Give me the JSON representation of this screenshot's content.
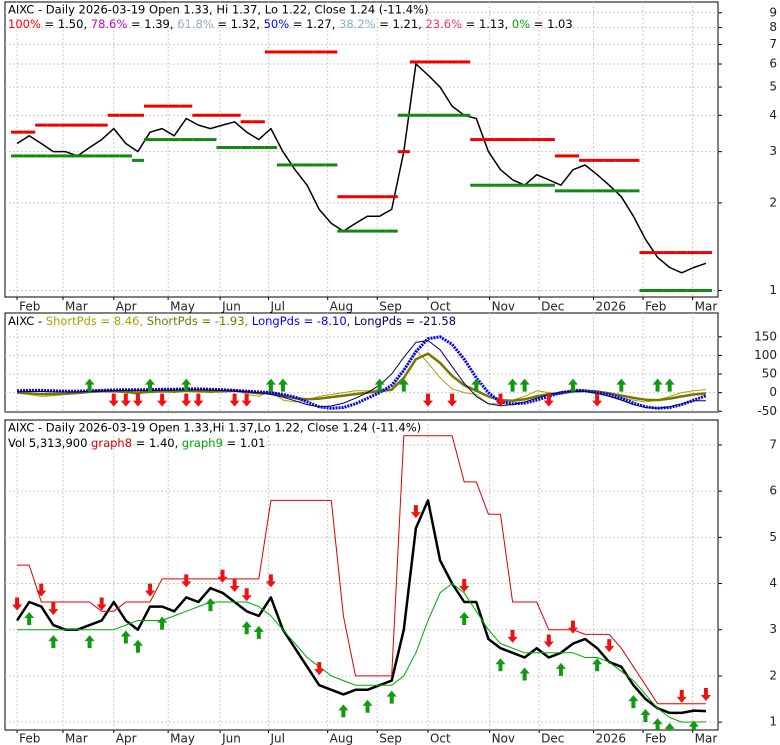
{
  "chart_data": [
    {
      "type": "line",
      "log_scale": true,
      "grid": true,
      "title": "AIXC - Daily 2026-03-19 Open 1.33, Hi 1.37, Lo 1.22, Close 1.24 (-11.4%)",
      "fib": [
        {
          "label": "100%",
          "text": " = 1.50, ",
          "color": "#ff0000"
        },
        {
          "label": "78.6%",
          "text": " = 1.39, ",
          "color": "#cc00cc"
        },
        {
          "label": "61.8%",
          "text": " = 1.32, ",
          "color": "#99aacc"
        },
        {
          "label": "50%",
          "text": " = 1.27, ",
          "color": "#0000ff"
        },
        {
          "label": "38.2%",
          "text": " = 1.21, ",
          "color": "#88aacc"
        },
        {
          "label": "23.6%",
          "text": " = 1.13, ",
          "color": "#ff3366"
        },
        {
          "label": "0%",
          "text": " = 1.03",
          "color": "#00aa00"
        }
      ],
      "x": [
        0,
        1,
        2,
        3,
        4,
        5,
        6,
        7,
        8,
        9,
        10,
        11,
        12,
        13,
        14,
        15,
        16,
        17,
        18,
        19,
        20,
        21,
        22,
        23,
        24,
        25,
        26,
        27,
        28,
        29,
        30,
        31,
        32,
        33,
        34,
        35,
        36,
        37,
        38,
        39,
        40,
        41,
        42,
        43,
        44,
        45,
        46,
        47,
        48,
        49,
        50,
        51,
        52,
        53,
        54,
        55,
        56,
        57
      ],
      "xlim": [
        -1,
        58
      ],
      "xticks": [
        {
          "value": 0,
          "label": "Feb"
        },
        {
          "value": 3.8,
          "label": "Mar"
        },
        {
          "value": 8,
          "label": "Apr"
        },
        {
          "value": 12.5,
          "label": "May"
        },
        {
          "value": 16.8,
          "label": "Jun"
        },
        {
          "value": 20.8,
          "label": "Jul"
        },
        {
          "value": 25.7,
          "label": "Aug"
        },
        {
          "value": 29.8,
          "label": "Sep"
        },
        {
          "value": 34,
          "label": "Oct"
        },
        {
          "value": 39.1,
          "label": "Nov"
        },
        {
          "value": 43.2,
          "label": "Dec"
        },
        {
          "value": 47.7,
          "label": "2026"
        },
        {
          "value": 51.8,
          "label": "Feb"
        },
        {
          "value": 55.9,
          "label": "Mar"
        }
      ],
      "ylim": [
        0.95,
        9.8
      ],
      "yticks": [
        1,
        2,
        3,
        4,
        5,
        6,
        7,
        8,
        9
      ],
      "series": [
        {
          "color": "#000000",
          "width": 1.5,
          "values": [
            3.2,
            3.4,
            3.2,
            3.0,
            3.0,
            2.9,
            3.1,
            3.3,
            3.6,
            3.2,
            3.0,
            3.5,
            3.6,
            3.4,
            3.9,
            3.7,
            3.6,
            3.7,
            3.8,
            3.5,
            3.3,
            3.6,
            3.0,
            2.6,
            2.3,
            1.9,
            1.7,
            1.6,
            1.7,
            1.8,
            1.8,
            1.9,
            3.0,
            6.0,
            5.5,
            5.0,
            4.3,
            4.0,
            3.9,
            3.0,
            2.6,
            2.4,
            2.3,
            2.5,
            2.4,
            2.3,
            2.6,
            2.7,
            2.5,
            2.3,
            2.1,
            1.8,
            1.5,
            1.3,
            1.2,
            1.15,
            1.2,
            1.24
          ]
        },
        {
          "color": "#ee0000",
          "width": 3,
          "style": "step",
          "values": [
            3.5,
            3.5,
            3.7,
            3.7,
            3.7,
            3.7,
            3.7,
            3.7,
            4.0,
            4.0,
            4.0,
            4.3,
            4.3,
            4.3,
            4.3,
            4.0,
            4.0,
            4.0,
            4.0,
            3.8,
            3.8,
            6.6,
            6.6,
            6.6,
            6.6,
            6.6,
            6.6,
            2.1,
            2.1,
            2.1,
            2.1,
            2.1,
            3.0,
            6.1,
            6.1,
            6.1,
            6.1,
            6.1,
            3.3,
            3.3,
            3.3,
            3.3,
            3.3,
            3.3,
            3.3,
            2.9,
            2.9,
            2.8,
            2.8,
            2.8,
            2.8,
            2.8,
            1.35,
            1.35,
            1.35,
            1.35,
            1.35,
            1.35
          ]
        },
        {
          "color": "#118811",
          "width": 3,
          "style": "step",
          "values": [
            2.9,
            2.9,
            2.9,
            2.9,
            2.9,
            2.9,
            2.9,
            2.9,
            2.9,
            2.9,
            2.8,
            3.3,
            3.3,
            3.3,
            3.3,
            3.3,
            3.3,
            3.1,
            3.1,
            3.1,
            3.1,
            3.1,
            2.7,
            2.7,
            2.7,
            2.7,
            2.7,
            1.6,
            1.6,
            1.6,
            1.6,
            1.6,
            4.0,
            4.0,
            4.0,
            4.0,
            4.0,
            4.0,
            2.3,
            2.3,
            2.3,
            2.3,
            2.3,
            2.3,
            2.3,
            2.2,
            2.2,
            2.2,
            2.2,
            2.2,
            2.2,
            2.2,
            1.0,
            1.0,
            1.0,
            1.0,
            1.0,
            1.0
          ]
        }
      ]
    },
    {
      "type": "line",
      "grid": true,
      "header": "AIXC - ",
      "x": [
        0,
        1,
        2,
        3,
        4,
        5,
        6,
        7,
        8,
        9,
        10,
        11,
        12,
        13,
        14,
        15,
        16,
        17,
        18,
        19,
        20,
        21,
        22,
        23,
        24,
        25,
        26,
        27,
        28,
        29,
        30,
        31,
        32,
        33,
        34,
        35,
        36,
        37,
        38,
        39,
        40,
        41,
        42,
        43,
        44,
        45,
        46,
        47,
        48,
        49,
        50,
        51,
        52,
        53,
        54,
        55,
        56,
        57
      ],
      "xlim": [
        -1,
        58
      ],
      "xticks": [
        0,
        3.8,
        8,
        12.5,
        16.8,
        20.8,
        25.7,
        29.8,
        34,
        39.1,
        43.2,
        47.7,
        51.8,
        55.9
      ],
      "ylim": [
        -52,
        214
      ],
      "yticks": [
        -50,
        0,
        50,
        100,
        150
      ],
      "series": [
        {
          "name": "ShortPds",
          "legend_label": " = 8.46, ",
          "color": "#a6a600",
          "width": 1,
          "values": [
            0,
            -5,
            -10,
            -8,
            -5,
            0,
            5,
            8,
            6,
            0,
            -5,
            5,
            8,
            0,
            10,
            5,
            0,
            5,
            8,
            -5,
            -10,
            5,
            -20,
            -25,
            -20,
            -10,
            -5,
            0,
            5,
            5,
            8,
            10,
            60,
            115,
            80,
            40,
            10,
            0,
            -5,
            -30,
            -30,
            -20,
            -10,
            5,
            0,
            -5,
            10,
            8,
            0,
            -10,
            -15,
            -20,
            -25,
            -20,
            -10,
            0,
            5,
            8.46
          ]
        },
        {
          "name": "ShortPds",
          "legend_label": " = -1.93, ",
          "color": "#777700",
          "width": 2.5,
          "values": [
            0,
            -2,
            -4,
            -4,
            -3,
            -1,
            2,
            4,
            4,
            2,
            0,
            2,
            4,
            3,
            5,
            4,
            3,
            4,
            5,
            2,
            -2,
            0,
            -8,
            -15,
            -18,
            -16,
            -12,
            -8,
            -4,
            0,
            4,
            8,
            40,
            90,
            105,
            80,
            45,
            20,
            5,
            -10,
            -20,
            -22,
            -18,
            -10,
            -4,
            -2,
            3,
            5,
            3,
            -2,
            -8,
            -14,
            -19,
            -20,
            -16,
            -10,
            -5,
            -1.93
          ]
        },
        {
          "name": "LongPds",
          "legend_label": " = -8.10, ",
          "color": "#0000ff",
          "width": 3,
          "dash": "2 1",
          "values": [
            5,
            6,
            6,
            5,
            4,
            4,
            5,
            6,
            7,
            8,
            8,
            8,
            9,
            9,
            10,
            10,
            9,
            8,
            6,
            4,
            2,
            0,
            -5,
            -12,
            -25,
            -38,
            -42,
            -40,
            -30,
            -15,
            0,
            20,
            60,
            110,
            145,
            150,
            130,
            90,
            40,
            0,
            -25,
            -30,
            -28,
            -20,
            -10,
            0,
            5,
            5,
            0,
            -5,
            -15,
            -28,
            -38,
            -42,
            -40,
            -32,
            -20,
            -8.1
          ]
        },
        {
          "name": "LongPds",
          "legend_label": " = -21.58",
          "color": "#000066",
          "width": 1,
          "values": [
            2,
            3,
            3,
            2,
            2,
            2,
            3,
            4,
            5,
            6,
            6,
            6,
            7,
            7,
            8,
            8,
            7,
            6,
            4,
            2,
            0,
            -5,
            -12,
            -22,
            -32,
            -38,
            -36,
            -28,
            -15,
            0,
            20,
            50,
            95,
            135,
            140,
            115,
            70,
            25,
            -10,
            -30,
            -35,
            -32,
            -25,
            -15,
            -5,
            2,
            4,
            3,
            -2,
            -10,
            -20,
            -32,
            -40,
            -42,
            -38,
            -30,
            -22,
            -21.58
          ]
        }
      ],
      "buy_signals": [
        6,
        11,
        14,
        21,
        22,
        30,
        32,
        38,
        41,
        42,
        46,
        50,
        53,
        54
      ],
      "sell_signals": [
        8,
        9,
        10,
        12,
        14,
        15,
        18,
        19,
        34,
        36,
        40,
        44,
        48
      ]
    },
    {
      "type": "line",
      "grid": true,
      "title": "AIXC - Daily 2026-03-19 Open 1.33,Hi 1.37,Lo 1.22, Close 1.24 (-11.4%)",
      "volume_label": "Vol 5,313,900 ",
      "x": [
        0,
        1,
        2,
        3,
        4,
        5,
        6,
        7,
        8,
        9,
        10,
        11,
        12,
        13,
        14,
        15,
        16,
        17,
        18,
        19,
        20,
        21,
        22,
        23,
        24,
        25,
        26,
        27,
        28,
        29,
        30,
        31,
        32,
        33,
        34,
        35,
        36,
        37,
        38,
        39,
        40,
        41,
        42,
        43,
        44,
        45,
        46,
        47,
        48,
        49,
        50,
        51,
        52,
        53,
        54,
        55,
        56,
        57
      ],
      "xlim": [
        -1,
        58
      ],
      "xticks": [
        {
          "value": 0,
          "label": "Feb"
        },
        {
          "value": 3.8,
          "label": "Mar"
        },
        {
          "value": 8,
          "label": "Apr"
        },
        {
          "value": 12.5,
          "label": "May"
        },
        {
          "value": 16.8,
          "label": "Jun"
        },
        {
          "value": 20.8,
          "label": "Jul"
        },
        {
          "value": 25.7,
          "label": "Aug"
        },
        {
          "value": 29.8,
          "label": "Sep"
        },
        {
          "value": 34,
          "label": "Oct"
        },
        {
          "value": 39.1,
          "label": "Nov"
        },
        {
          "value": 43.2,
          "label": "Dec"
        },
        {
          "value": 47.7,
          "label": "2026"
        },
        {
          "value": 51.8,
          "label": "Feb"
        },
        {
          "value": 55.9,
          "label": "Mar"
        }
      ],
      "ylim": [
        0.83,
        7.54
      ],
      "yticks": [
        1,
        2,
        3,
        4,
        5,
        6,
        7
      ],
      "series": [
        {
          "color": "#000000",
          "width": 2.5,
          "values": [
            3.2,
            3.6,
            3.5,
            3.1,
            3.0,
            3.0,
            3.1,
            3.2,
            3.6,
            3.2,
            3.0,
            3.5,
            3.5,
            3.4,
            3.7,
            3.6,
            3.9,
            3.8,
            3.6,
            3.4,
            3.3,
            3.7,
            3.0,
            2.6,
            2.2,
            1.8,
            1.7,
            1.6,
            1.7,
            1.7,
            1.8,
            1.9,
            3.0,
            5.2,
            5.8,
            4.5,
            4.0,
            3.6,
            3.6,
            2.8,
            2.6,
            2.5,
            2.4,
            2.6,
            2.4,
            2.5,
            2.7,
            2.8,
            2.6,
            2.3,
            2.2,
            1.8,
            1.5,
            1.3,
            1.2,
            1.2,
            1.25,
            1.24
          ]
        },
        {
          "name": "graph8",
          "legend_label": " = 1.40, ",
          "color": "#dd0000",
          "width": 1,
          "values": [
            4.4,
            4.4,
            3.6,
            3.6,
            3.6,
            3.6,
            3.6,
            3.4,
            3.4,
            3.6,
            3.6,
            3.6,
            4.1,
            4.1,
            4.1,
            4.1,
            4.1,
            4.1,
            4.1,
            4.1,
            4.1,
            5.8,
            5.8,
            5.8,
            5.8,
            5.8,
            5.8,
            3.3,
            2.0,
            2.0,
            2.0,
            2.0,
            7.2,
            7.2,
            7.2,
            7.2,
            7.2,
            6.2,
            6.2,
            5.5,
            5.5,
            3.6,
            3.6,
            3.6,
            3.0,
            3.0,
            3.0,
            2.9,
            2.9,
            2.9,
            2.6,
            2.2,
            1.8,
            1.4,
            1.4,
            1.4,
            1.4,
            1.4
          ]
        },
        {
          "name": "graph9",
          "legend_label": " = 1.01",
          "color": "#00aa00",
          "width": 1,
          "values": [
            3.0,
            3.0,
            3.0,
            3.0,
            3.0,
            3.0,
            3.0,
            3.0,
            3.0,
            3.1,
            3.2,
            3.2,
            3.2,
            3.3,
            3.4,
            3.5,
            3.6,
            3.6,
            3.6,
            3.6,
            3.5,
            3.3,
            3.0,
            2.7,
            2.4,
            2.2,
            2.0,
            1.9,
            1.8,
            1.8,
            1.8,
            1.8,
            2.0,
            2.5,
            3.2,
            3.8,
            4.0,
            3.8,
            3.4,
            3.0,
            2.7,
            2.6,
            2.5,
            2.5,
            2.5,
            2.5,
            2.5,
            2.4,
            2.4,
            2.3,
            2.1,
            1.9,
            1.6,
            1.3,
            1.1,
            1.0,
            1.0,
            1.01
          ]
        }
      ],
      "buy_signals": [
        1,
        3,
        6,
        9,
        10,
        12,
        16,
        19,
        20,
        27,
        29,
        31,
        37,
        40,
        42,
        45,
        48,
        51,
        52,
        53,
        54,
        56
      ],
      "sell_signals": [
        0,
        2,
        3,
        7,
        11,
        14,
        17,
        18,
        19,
        21,
        25,
        33,
        37,
        41,
        44,
        46,
        49,
        55,
        57
      ]
    }
  ]
}
